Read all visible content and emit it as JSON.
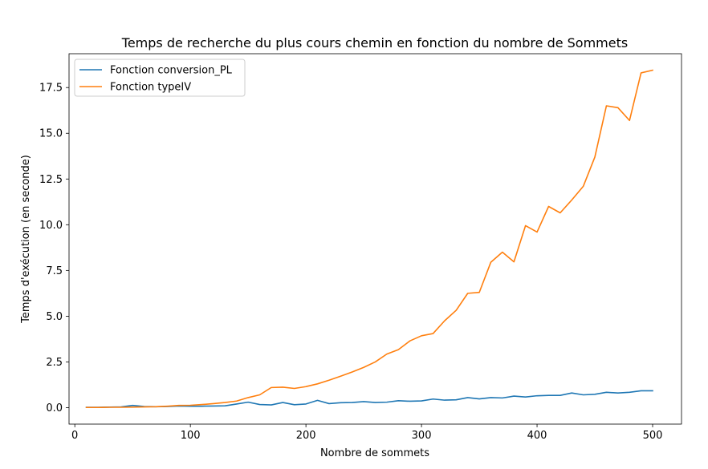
{
  "chart_data": {
    "type": "line",
    "title": "Temps de recherche du plus cours chemin en fonction du nombre de Sommets",
    "xlabel": "Nombre de sommets",
    "ylabel": "Temps d'exécution (en seconde)",
    "xlim": [
      -5,
      525
    ],
    "ylim": [
      -0.9,
      19.35
    ],
    "x_ticks": [
      0,
      100,
      200,
      300,
      400,
      500
    ],
    "x_tick_labels": [
      "0",
      "100",
      "200",
      "300",
      "400",
      "500"
    ],
    "y_ticks": [
      0,
      2.5,
      5,
      7.5,
      10,
      12.5,
      15,
      17.5
    ],
    "y_tick_labels": [
      "0.0",
      "2.5",
      "5.0",
      "7.5",
      "10.0",
      "12.5",
      "15.0",
      "17.5"
    ],
    "grid": false,
    "legend_position": "top-left",
    "x": [
      10,
      20,
      30,
      40,
      50,
      60,
      70,
      80,
      90,
      100,
      110,
      120,
      130,
      140,
      150,
      160,
      170,
      180,
      190,
      200,
      210,
      220,
      230,
      240,
      250,
      260,
      270,
      280,
      290,
      300,
      310,
      320,
      330,
      340,
      350,
      360,
      370,
      380,
      390,
      400,
      410,
      420,
      430,
      440,
      450,
      460,
      470,
      480,
      490,
      500
    ],
    "series": [
      {
        "name": "Fonction conversion_PL",
        "color": "#1f77b4",
        "values": [
          0.02,
          0.02,
          0.03,
          0.04,
          0.12,
          0.06,
          0.05,
          0.06,
          0.09,
          0.08,
          0.08,
          0.09,
          0.1,
          0.2,
          0.3,
          0.17,
          0.15,
          0.28,
          0.16,
          0.2,
          0.4,
          0.22,
          0.27,
          0.28,
          0.33,
          0.28,
          0.3,
          0.38,
          0.35,
          0.37,
          0.47,
          0.41,
          0.43,
          0.55,
          0.48,
          0.55,
          0.53,
          0.63,
          0.58,
          0.65,
          0.67,
          0.67,
          0.8,
          0.7,
          0.73,
          0.84,
          0.8,
          0.84,
          0.92,
          0.92
        ]
      },
      {
        "name": "Fonction typeIV",
        "color": "#ff7f0e",
        "values": [
          0.01,
          0.01,
          0.02,
          0.02,
          0.03,
          0.04,
          0.05,
          0.08,
          0.12,
          0.13,
          0.17,
          0.22,
          0.28,
          0.36,
          0.55,
          0.7,
          1.1,
          1.12,
          1.05,
          1.15,
          1.3,
          1.5,
          1.72,
          1.95,
          2.2,
          2.5,
          2.93,
          3.17,
          3.65,
          3.93,
          4.05,
          4.75,
          5.32,
          6.25,
          6.3,
          7.95,
          8.5,
          7.97,
          9.95,
          9.6,
          11.0,
          10.65,
          11.35,
          12.1,
          13.7,
          16.5,
          16.4,
          15.7,
          18.3,
          18.45
        ]
      }
    ]
  }
}
